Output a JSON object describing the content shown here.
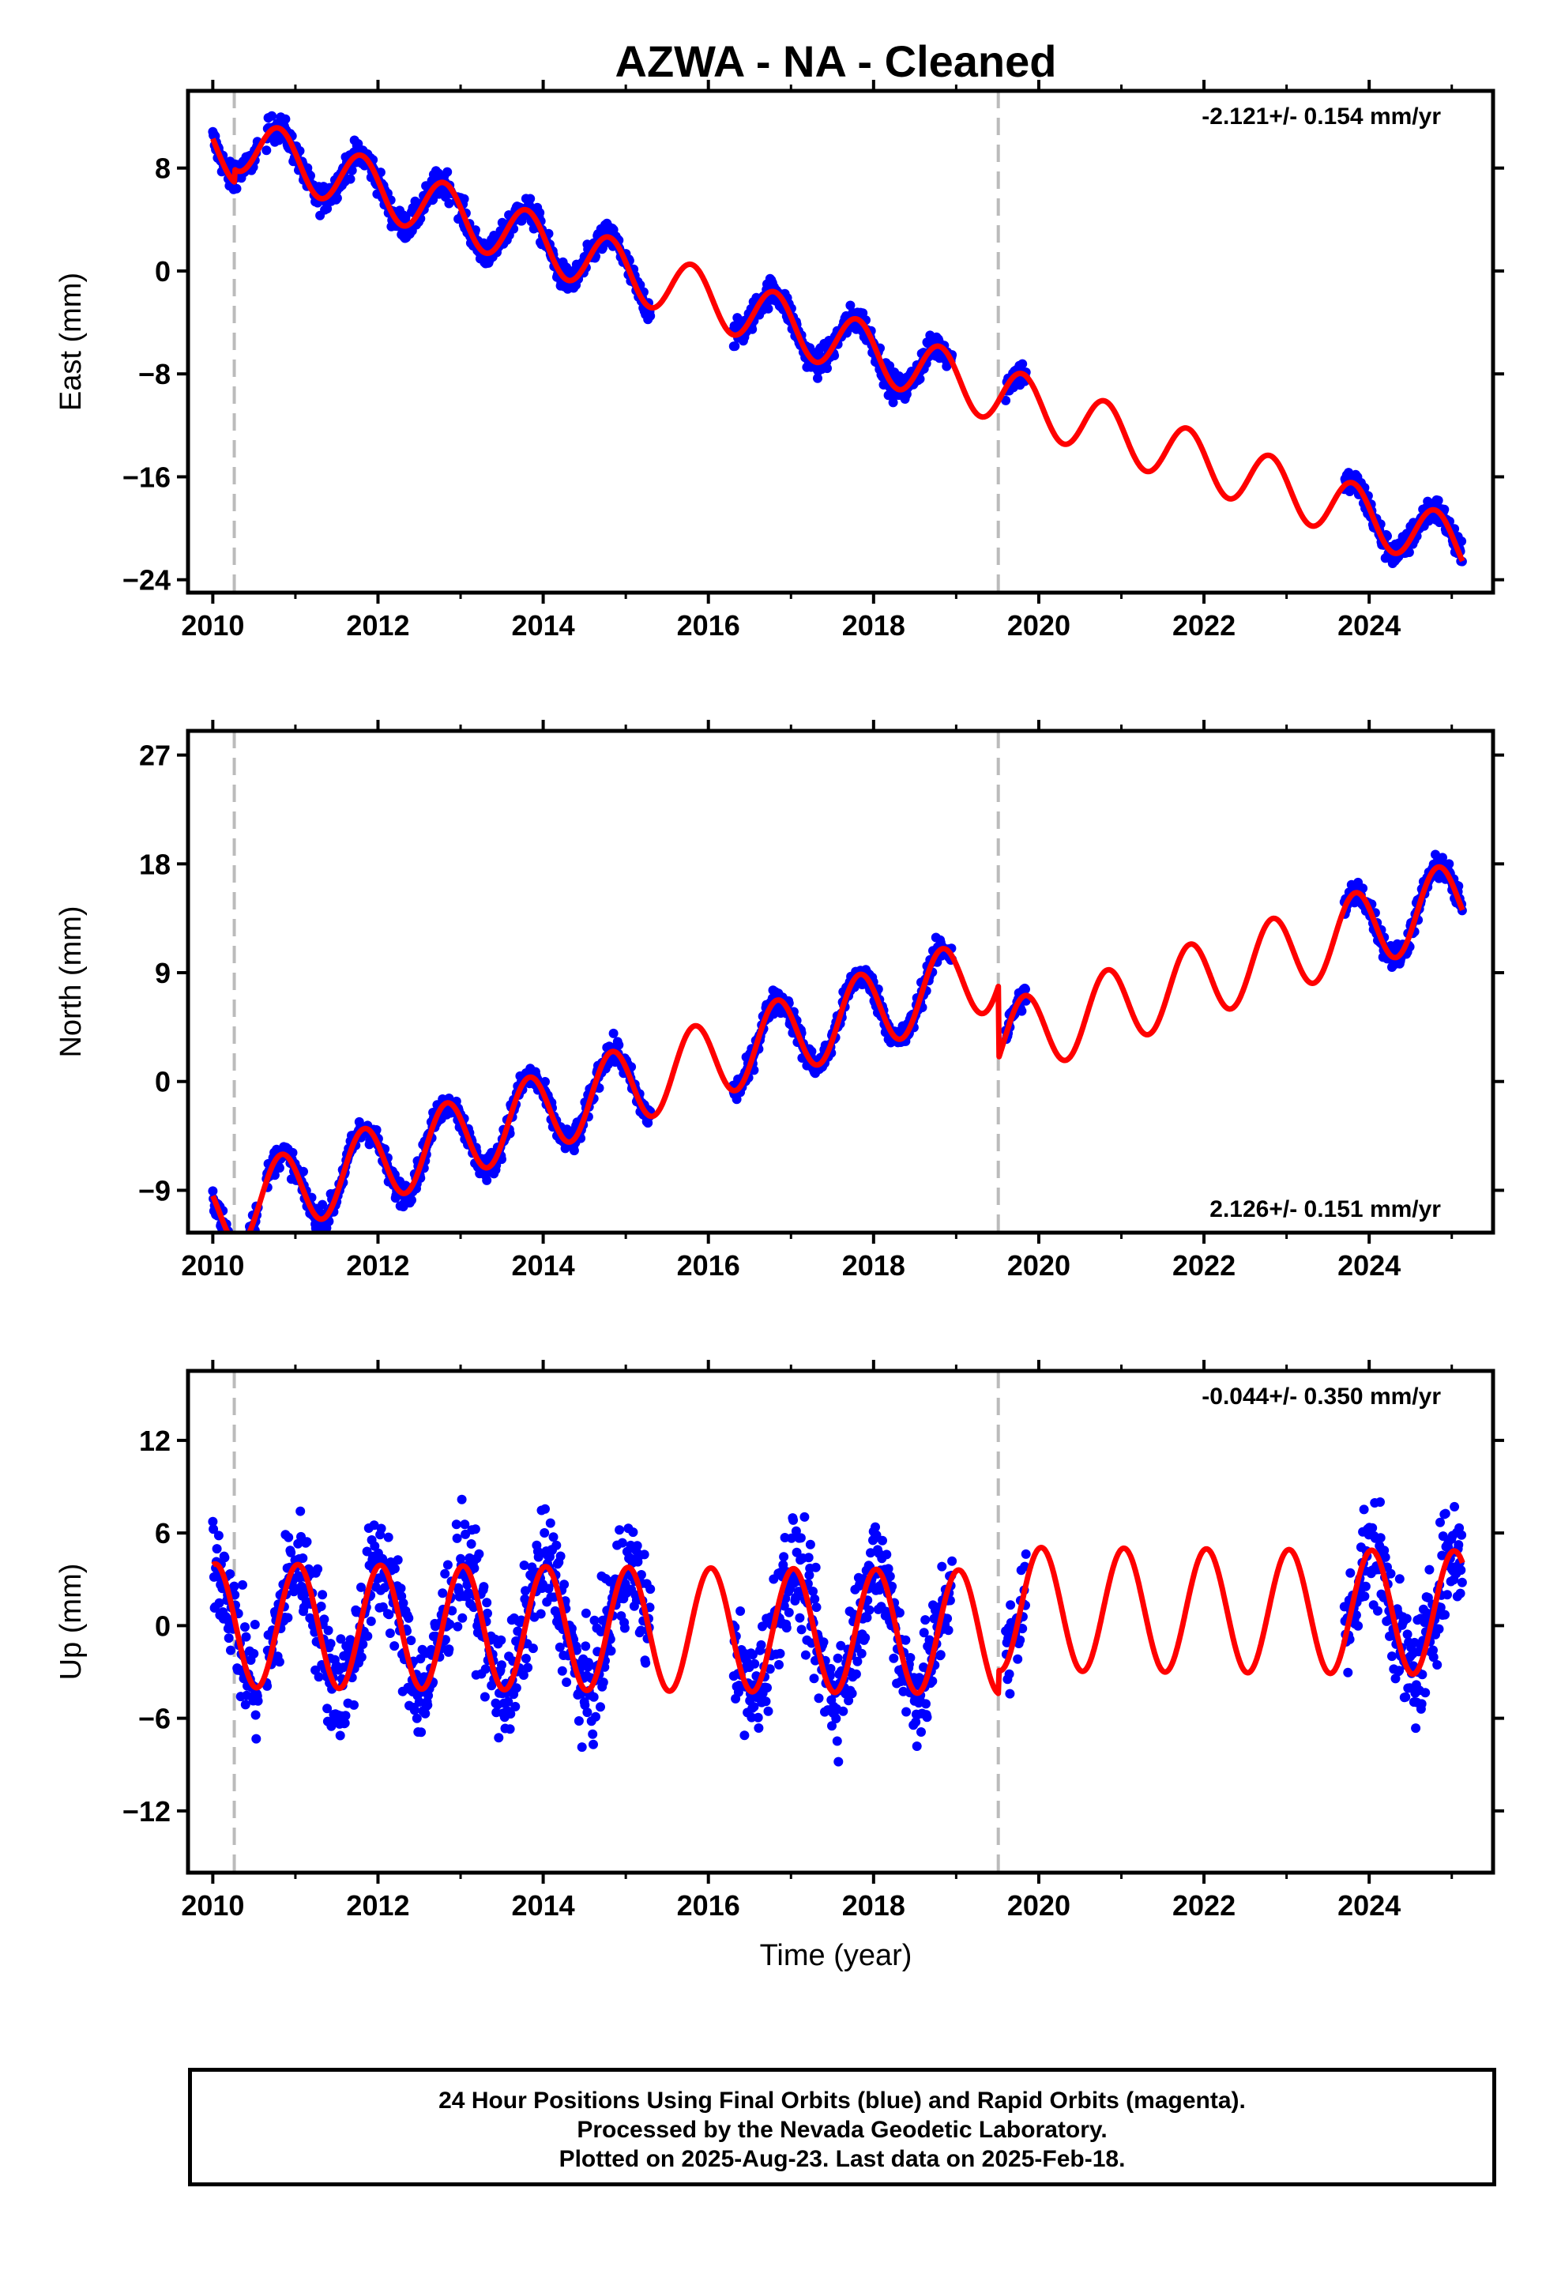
{
  "chart_data": {
    "type": "scatter",
    "title": "AZWA  - NA - Cleaned",
    "xlabel": "Time (year)",
    "xlim": [
      2009.7,
      2025.5
    ],
    "xticks": [
      2010,
      2012,
      2014,
      2016,
      2018,
      2020,
      2022,
      2024
    ],
    "event_lines": [
      2010.26,
      2019.51
    ],
    "colors": {
      "observations": "#0000ff",
      "model": "#ff0000",
      "event_line": "#bbbbbb",
      "axes": "#000000"
    },
    "legend": "none",
    "grid": false,
    "data_segments": [
      [
        2010.0,
        2010.55
      ],
      [
        2010.65,
        2012.9
      ],
      [
        2012.95,
        2015.3
      ],
      [
        2016.3,
        2018.95
      ],
      [
        2019.6,
        2019.85
      ],
      [
        2023.7,
        2025.13
      ]
    ],
    "panels": [
      {
        "ylabel": "East (mm)",
        "ylim": [
          -25,
          14
        ],
        "yticks": [
          -24,
          -16,
          -8,
          0,
          8
        ],
        "rate_text": "-2.121+/- 0.154 mm/yr",
        "rate_position": "top-right",
        "model": {
          "intercept": 9.6,
          "rate": -2.121,
          "amplitude": 2.2,
          "phase": 0.55,
          "offsets": [
            {
              "year": 2010.26,
              "size": 1.0
            }
          ]
        },
        "scatter_mm": 1.0
      },
      {
        "ylabel": "North (mm)",
        "ylim": [
          -12.5,
          29
        ],
        "yticks": [
          -9,
          0,
          9,
          18,
          27
        ],
        "rate_text": "2.126+/- 0.151 mm/yr",
        "rate_position": "bottom-right",
        "model": {
          "intercept": -11.0,
          "rate": 2.126,
          "amplitude": 3.2,
          "phase": 0.58,
          "offsets": [
            {
              "year": 2019.51,
              "size": -6.0
            }
          ]
        },
        "scatter_mm": 1.0
      },
      {
        "ylabel": "Up (mm)",
        "ylim": [
          -16,
          16.5
        ],
        "yticks": [
          -12,
          -6,
          0,
          6,
          12
        ],
        "rate_text": "-0.044+/- 0.350 mm/yr",
        "rate_position": "top-right",
        "model": {
          "intercept": 0.0,
          "rate": -0.044,
          "amplitude": 4.0,
          "phase": 0.78,
          "offsets": [
            {
              "year": 2019.51,
              "size": 1.5
            }
          ]
        },
        "scatter_mm": 3.0
      }
    ]
  },
  "footer": {
    "line1": "24 Hour Positions Using Final Orbits (blue) and Rapid Orbits (magenta).",
    "line2": "Processed by the Nevada Geodetic Laboratory.",
    "line3": "Plotted on 2025-Aug-23. Last data on 2025-Feb-18."
  }
}
